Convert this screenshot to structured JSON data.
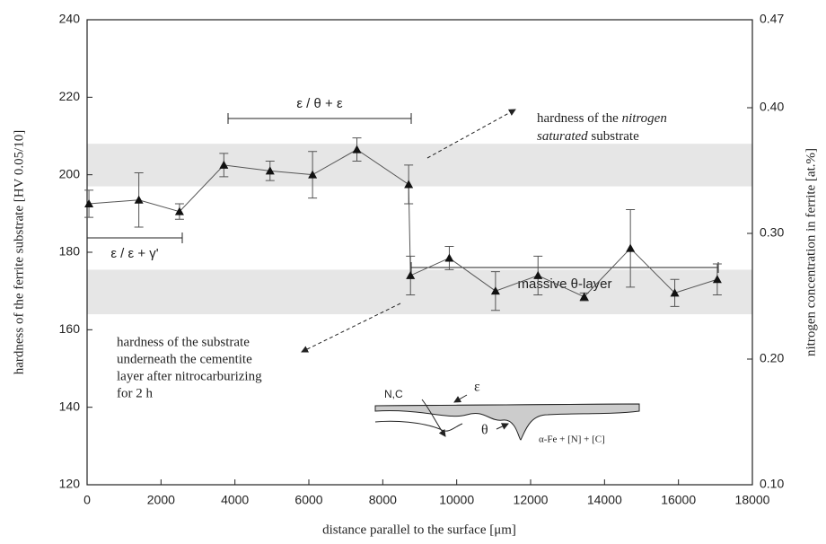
{
  "chart_data": {
    "type": "line",
    "x_label": "distance parallel to the surface [μm]",
    "y_label": "hardness of the ferrite substrate [HV 0.05/10]",
    "y2_label": "nitrogen concentration in ferrite [at.%]",
    "x": [
      50,
      1400,
      2500,
      3700,
      4950,
      6100,
      7300,
      8700,
      8750,
      9800,
      11050,
      12200,
      13450,
      14700,
      15900,
      17050
    ],
    "series": [
      {
        "color": "#555555",
        "values": [
          192.5,
          193.5,
          190.5,
          202.5,
          201,
          200,
          206.5,
          197.5,
          174,
          178.5,
          170,
          174,
          168.5,
          181,
          169.5,
          173
        ],
        "errors": [
          3.5,
          7,
          2,
          3,
          2.5,
          6,
          3,
          5,
          5,
          3,
          5,
          5,
          1,
          10,
          3.5,
          4
        ]
      }
    ],
    "bands": [
      [
        197,
        208
      ],
      [
        164,
        175.5
      ]
    ],
    "xlim": [
      0,
      18000
    ],
    "xticks": [
      0,
      2000,
      4000,
      6000,
      8000,
      10000,
      12000,
      14000,
      16000,
      18000
    ],
    "ylim": [
      120,
      240
    ],
    "yticks": [
      120,
      140,
      160,
      180,
      200,
      220,
      240
    ],
    "y2lim": [
      0.1,
      0.47
    ],
    "y2ticks": [
      {
        "value": 0.1,
        "label": "0.10"
      },
      {
        "value": 0.2,
        "label": "0.20"
      },
      {
        "value": 0.3,
        "label": "0.30"
      },
      {
        "value": 0.4,
        "label": "0.40"
      },
      0.47
    ],
    "brackets": [
      "ε / θ + ε",
      "ε / ε + γ'",
      "massive  θ-layer"
    ],
    "annotation_saturated": [
      "hardness of the ",
      "nitrogen",
      "saturated",
      " substrate"
    ],
    "annotation_substrate": [
      "hardness of the substrate",
      "underneath the cementite",
      "layer after nitrocarburizing",
      "for 2 h"
    ],
    "inset": {
      "species": "N,C",
      "epsilon": "ε",
      "theta": "θ",
      "matrix": "α-Fe + [N] + [C]"
    }
  }
}
